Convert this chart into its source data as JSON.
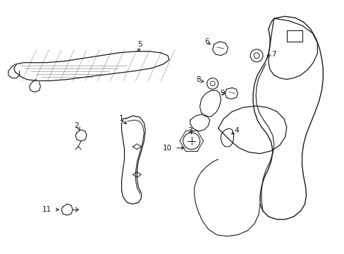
{
  "background_color": "#ffffff",
  "line_color": "#1a1a1a",
  "fig_width": 4.89,
  "fig_height": 3.6,
  "dpi": 100,
  "label_fontsize": 7.5
}
